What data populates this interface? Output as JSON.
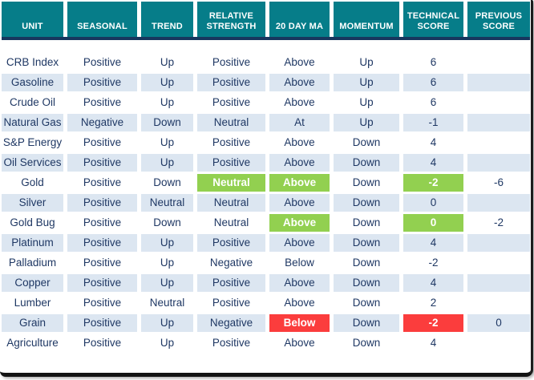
{
  "colors": {
    "header_bg": "#067d89",
    "rule_color": "#17375e",
    "alt_row_bg": "#dce6f1",
    "text_color": "#1f3864",
    "green": "#92d050",
    "red": "#fb3d3d"
  },
  "table": {
    "columns": [
      {
        "key": "unit",
        "label": "UNIT"
      },
      {
        "key": "seasonal",
        "label": "SEASONAL"
      },
      {
        "key": "trend",
        "label": "TREND"
      },
      {
        "key": "relative_strength",
        "label": "RELATIVE STRENGTH"
      },
      {
        "key": "ma20",
        "label": "20 DAY MA"
      },
      {
        "key": "momentum",
        "label": "MOMENTUM"
      },
      {
        "key": "technical_score",
        "label": "TECHNICAL SCORE"
      },
      {
        "key": "previous_score",
        "label": "PREVIOUS SCORE"
      }
    ],
    "rows": [
      {
        "unit": "CRB Index",
        "seasonal": "Positive",
        "trend": "Up",
        "relative_strength": "Positive",
        "ma20": "Above",
        "momentum": "Up",
        "technical_score": "6",
        "previous_score": "",
        "highlights": {}
      },
      {
        "unit": "Gasoline",
        "seasonal": "Positive",
        "trend": "Up",
        "relative_strength": "Positive",
        "ma20": "Above",
        "momentum": "Up",
        "technical_score": "6",
        "previous_score": "",
        "highlights": {}
      },
      {
        "unit": "Crude Oil",
        "seasonal": "Positive",
        "trend": "Up",
        "relative_strength": "Positive",
        "ma20": "Above",
        "momentum": "Up",
        "technical_score": "6",
        "previous_score": "",
        "highlights": {}
      },
      {
        "unit": "Natural Gas",
        "seasonal": "Negative",
        "trend": "Down",
        "relative_strength": "Neutral",
        "ma20": "At",
        "momentum": "Up",
        "technical_score": "-1",
        "previous_score": "",
        "highlights": {}
      },
      {
        "unit": "S&P Energy",
        "seasonal": "Positive",
        "trend": "Up",
        "relative_strength": "Positive",
        "ma20": "Above",
        "momentum": "Down",
        "technical_score": "4",
        "previous_score": "",
        "highlights": {}
      },
      {
        "unit": "Oil Services",
        "seasonal": "Positive",
        "trend": "Up",
        "relative_strength": "Positive",
        "ma20": "Above",
        "momentum": "Down",
        "technical_score": "4",
        "previous_score": "",
        "highlights": {}
      },
      {
        "unit": "Gold",
        "seasonal": "Positive",
        "trend": "Down",
        "relative_strength": "Neutral",
        "ma20": "Above",
        "momentum": "Down",
        "technical_score": "-2",
        "previous_score": "-6",
        "highlights": {
          "relative_strength": "green",
          "ma20": "green",
          "technical_score": "green"
        }
      },
      {
        "unit": "Silver",
        "seasonal": "Positive",
        "trend": "Neutral",
        "relative_strength": "Neutral",
        "ma20": "Above",
        "momentum": "Down",
        "technical_score": "0",
        "previous_score": "",
        "highlights": {}
      },
      {
        "unit": "Gold Bug",
        "seasonal": "Positive",
        "trend": "Down",
        "relative_strength": "Neutral",
        "ma20": "Above",
        "momentum": "Down",
        "technical_score": "0",
        "previous_score": "-2",
        "highlights": {
          "ma20": "green",
          "technical_score": "green"
        }
      },
      {
        "unit": "Platinum",
        "seasonal": "Positive",
        "trend": "Up",
        "relative_strength": "Positive",
        "ma20": "Above",
        "momentum": "Down",
        "technical_score": "4",
        "previous_score": "",
        "highlights": {}
      },
      {
        "unit": "Palladium",
        "seasonal": "Positive",
        "trend": "Up",
        "relative_strength": "Negative",
        "ma20": "Below",
        "momentum": "Down",
        "technical_score": "-2",
        "previous_score": "",
        "highlights": {}
      },
      {
        "unit": "Copper",
        "seasonal": "Positive",
        "trend": "Up",
        "relative_strength": "Positive",
        "ma20": "Above",
        "momentum": "Down",
        "technical_score": "4",
        "previous_score": "",
        "highlights": {}
      },
      {
        "unit": "Lumber",
        "seasonal": "Positive",
        "trend": "Neutral",
        "relative_strength": "Positive",
        "ma20": "Above",
        "momentum": "Down",
        "technical_score": "2",
        "previous_score": "",
        "highlights": {}
      },
      {
        "unit": "Grain",
        "seasonal": "Positive",
        "trend": "Up",
        "relative_strength": "Negative",
        "ma20": "Below",
        "momentum": "Down",
        "technical_score": "-2",
        "previous_score": "0",
        "highlights": {
          "ma20": "red",
          "technical_score": "red"
        }
      },
      {
        "unit": "Agriculture",
        "seasonal": "Positive",
        "trend": "Up",
        "relative_strength": "Positive",
        "ma20": "Above",
        "momentum": "Down",
        "technical_score": "4",
        "previous_score": "",
        "highlights": {}
      }
    ]
  }
}
